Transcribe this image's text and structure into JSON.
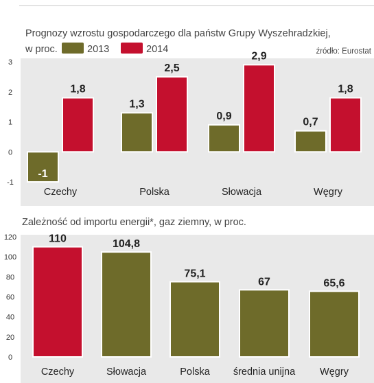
{
  "chart_data": [
    {
      "type": "bar",
      "title": "Prognozy wzrostu gospodarczego dla państw Grupy Wyszehradzkiej,",
      "subtitle": "w proc.",
      "source": "źródło: Eurostat",
      "categories": [
        "Czechy",
        "Polska",
        "Słowacja",
        "Węgry"
      ],
      "series": [
        {
          "name": "2013",
          "color": "#6e6b2a",
          "values": [
            -1,
            1.3,
            0.9,
            0.7
          ],
          "labels": [
            "-1",
            "1,3",
            "0,9",
            "0,7"
          ]
        },
        {
          "name": "2014",
          "color": "#c4102e",
          "values": [
            1.8,
            2.5,
            2.9,
            1.8
          ],
          "labels": [
            "1,8",
            "2,5",
            "2,9",
            "1,8"
          ]
        }
      ],
      "yticks": [
        "3",
        "2",
        "1",
        "0",
        "-1"
      ],
      "ylim": [
        -1,
        3
      ],
      "grid": false,
      "legend": "top"
    },
    {
      "type": "bar",
      "title": "Zależność od importu energii*, gaz ziemny,  w proc.",
      "categories": [
        "Czechy",
        "Słowacja",
        "Polska",
        "średnia unijna",
        "Węgry"
      ],
      "values": [
        110,
        104.8,
        75.1,
        67,
        65.6
      ],
      "labels": [
        "110",
        "104,8",
        "75,1",
        "67",
        "65,6"
      ],
      "colors": [
        "#c4102e",
        "#6e6b2a",
        "#6e6b2a",
        "#6e6b2a",
        "#6e6b2a"
      ],
      "yticks": [
        "0",
        "20",
        "40",
        "60",
        "80",
        "100",
        "120"
      ],
      "ylim": [
        0,
        120
      ],
      "grid": false
    }
  ]
}
